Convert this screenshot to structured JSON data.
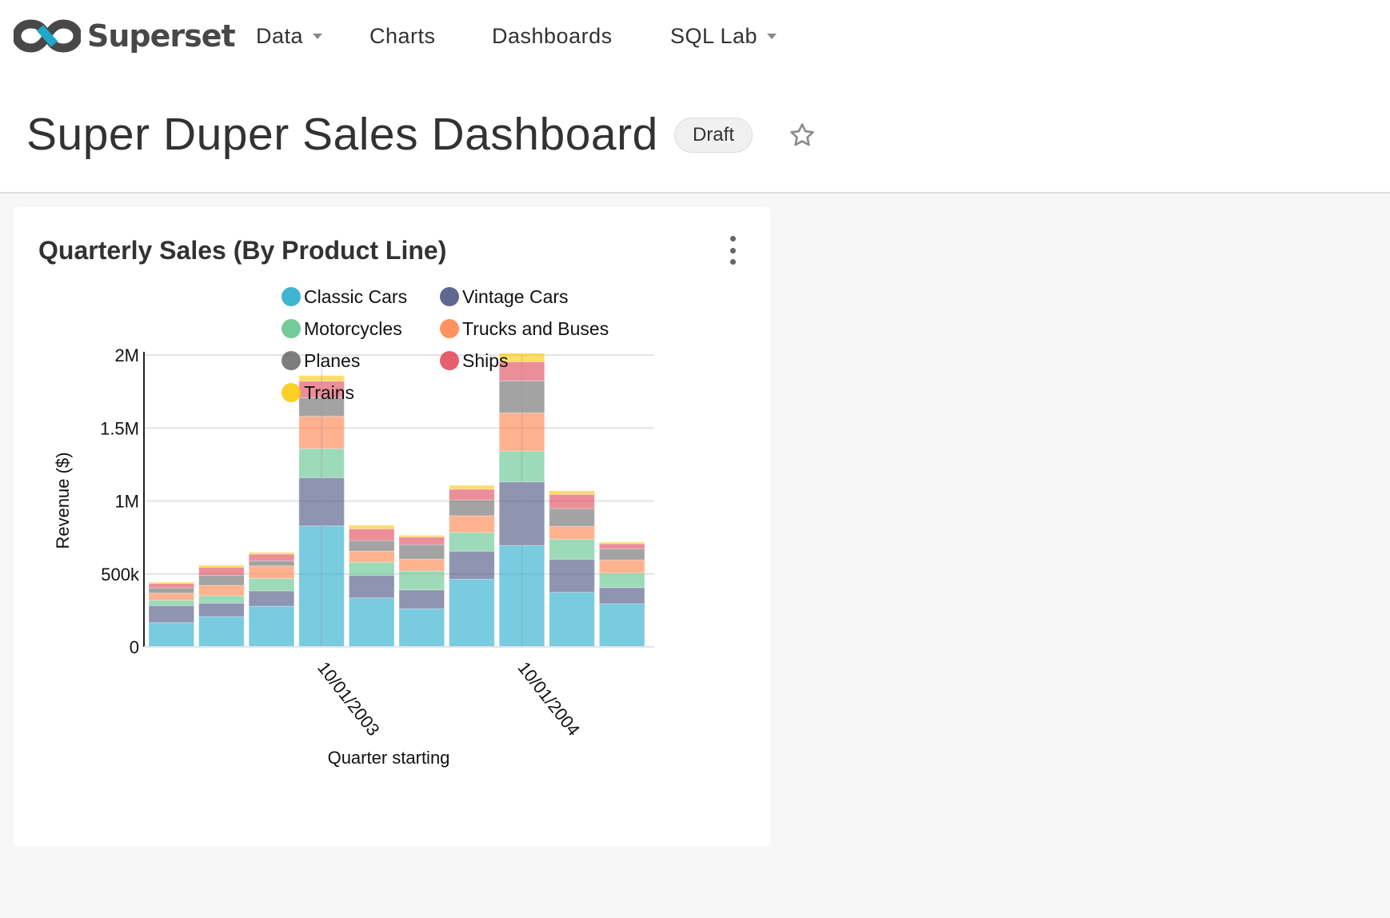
{
  "brand": {
    "name": "Superset"
  },
  "nav": {
    "items": [
      {
        "label": "Data",
        "has_caret": true
      },
      {
        "label": "Charts",
        "has_caret": false
      },
      {
        "label": "Dashboards",
        "has_caret": false
      },
      {
        "label": "SQL Lab",
        "has_caret": true
      }
    ]
  },
  "dashboard": {
    "title": "Super Duper Sales Dashboard",
    "status_badge": "Draft",
    "favorite_icon": "star-outline-icon",
    "favorited": false
  },
  "card": {
    "title": "Quarterly Sales (By Product Line)",
    "menu_icon": "kebab-vertical-icon"
  },
  "chart_data": {
    "type": "bar",
    "stacked": true,
    "xlabel": "Quarter starting",
    "ylabel": "Revenue ($)",
    "ylim": [
      0,
      2000000
    ],
    "y_ticks": [
      {
        "value": 0,
        "label": "0"
      },
      {
        "value": 500000,
        "label": "500k"
      },
      {
        "value": 1000000,
        "label": "1M"
      },
      {
        "value": 1500000,
        "label": "1.5M"
      },
      {
        "value": 2000000,
        "label": "2M"
      }
    ],
    "x_ticks": [
      {
        "index": 3,
        "label": "10/01/2003"
      },
      {
        "index": 7,
        "label": "10/01/2004"
      }
    ],
    "grid": true,
    "legend_position": "top",
    "series": [
      {
        "name": "Classic Cars",
        "color": "#1FA8C9",
        "values": [
          166000,
          208000,
          279000,
          829000,
          336000,
          261000,
          464000,
          696000,
          374000,
          296000
        ]
      },
      {
        "name": "Vintage Cars",
        "color": "#454E7C",
        "values": [
          117000,
          92000,
          105000,
          331000,
          155000,
          130000,
          192000,
          435000,
          227000,
          111000
        ]
      },
      {
        "name": "Motorcycles",
        "color": "#5AC189",
        "values": [
          37000,
          51000,
          85000,
          199000,
          90000,
          130000,
          128000,
          211000,
          137000,
          99000
        ]
      },
      {
        "name": "Trucks and Buses",
        "color": "#FF7F44",
        "values": [
          49000,
          71000,
          86000,
          221000,
          75000,
          80000,
          115000,
          262000,
          88000,
          89000
        ]
      },
      {
        "name": "Planes",
        "color": "#666666",
        "values": [
          36000,
          69000,
          35000,
          128000,
          73000,
          100000,
          107000,
          219000,
          122000,
          77000
        ]
      },
      {
        "name": "Ships",
        "color": "#E04355",
        "values": [
          30000,
          55000,
          46000,
          113000,
          80000,
          52000,
          75000,
          131000,
          97000,
          35000
        ]
      },
      {
        "name": "Trains",
        "color": "#FCC700",
        "values": [
          9000,
          15000,
          12000,
          38000,
          24000,
          12000,
          26000,
          59000,
          25000,
          11000
        ]
      }
    ]
  }
}
